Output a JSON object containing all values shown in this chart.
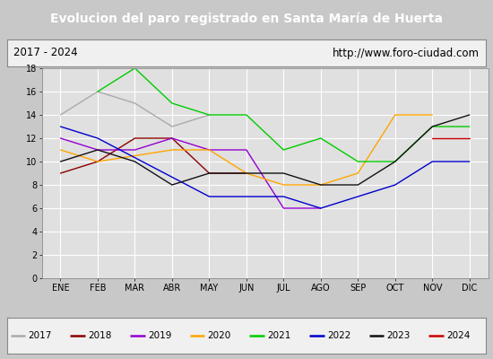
{
  "title": "Evolucion del paro registrado en Santa María de Huerta",
  "subtitle_left": "2017 - 2024",
  "subtitle_right": "http://www.foro-ciudad.com",
  "months": [
    "ENE",
    "FEB",
    "MAR",
    "ABR",
    "MAY",
    "JUN",
    "JUL",
    "AGO",
    "SEP",
    "OCT",
    "NOV",
    "DIC"
  ],
  "series_data": {
    "2017": {
      "color": "#aaaaaa",
      "data": [
        14,
        16,
        15,
        13,
        14,
        null,
        null,
        null,
        null,
        null,
        null,
        null
      ]
    },
    "2018": {
      "color": "#8b0000",
      "data": [
        9,
        10,
        12,
        12,
        9,
        9,
        null,
        null,
        null,
        null,
        null,
        null
      ]
    },
    "2019": {
      "color": "#9400d3",
      "data": [
        12,
        11,
        11,
        12,
        11,
        11,
        6,
        6,
        null,
        null,
        null,
        null
      ]
    },
    "2020": {
      "color": "#ffa500",
      "data": [
        11,
        10,
        null,
        11,
        11,
        9,
        8,
        8,
        9,
        14,
        14,
        null
      ]
    },
    "2021": {
      "color": "#00cc00",
      "data": [
        null,
        16,
        18,
        15,
        14,
        14,
        11,
        12,
        10,
        10,
        13,
        13
      ]
    },
    "2022": {
      "color": "#0000cc",
      "data": [
        13,
        12,
        null,
        null,
        7,
        7,
        7,
        6,
        7,
        8,
        10,
        10
      ]
    },
    "2023": {
      "color": "#111111",
      "data": [
        10,
        11,
        10,
        8,
        9,
        9,
        9,
        8,
        8,
        10,
        13,
        14
      ]
    },
    "2024": {
      "color": "#cc0000",
      "data": [
        null,
        null,
        null,
        null,
        null,
        null,
        null,
        null,
        null,
        null,
        12,
        12
      ]
    }
  },
  "ylim": [
    0,
    18
  ],
  "yticks": [
    0,
    2,
    4,
    6,
    8,
    10,
    12,
    14,
    16,
    18
  ],
  "title_bg": "#3c6bcc",
  "title_color": "white",
  "title_fontsize": 10,
  "outer_bg": "#c8c8c8",
  "plot_bg": "#e0e0e0",
  "header_bg": "#f0f0f0",
  "legend_bg": "#f0f0f0",
  "grid_color": "#ffffff",
  "tick_fontsize": 7,
  "legend_fontsize": 7.5
}
